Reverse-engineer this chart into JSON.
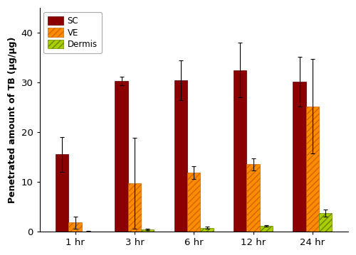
{
  "time_points": [
    "1 hr",
    "3 hr",
    "6 hr",
    "12 hr",
    "24 hr"
  ],
  "sc_values": [
    15.5,
    30.3,
    30.4,
    32.5,
    30.1
  ],
  "ve_values": [
    1.8,
    9.7,
    11.8,
    13.5,
    25.2
  ],
  "dermis_values": [
    0.05,
    0.45,
    0.75,
    1.1,
    3.7
  ],
  "sc_errors": [
    3.5,
    0.9,
    4.0,
    5.5,
    5.0
  ],
  "ve_errors": [
    1.2,
    9.2,
    1.3,
    1.2,
    9.5
  ],
  "dermis_errors": [
    0.1,
    0.12,
    0.2,
    0.12,
    0.75
  ],
  "sc_color": "#8B0000",
  "ve_color": "#FF8C00",
  "dermis_color": "#AACC00",
  "ylabel": "Penetrated amount of TB (µg/µg)",
  "ylim": [
    0,
    45
  ],
  "yticks": [
    0,
    10,
    20,
    30,
    40
  ],
  "bar_width": 0.22,
  "background_color": "#ffffff",
  "legend_labels": [
    "SC",
    "VE",
    "Dermis"
  ]
}
